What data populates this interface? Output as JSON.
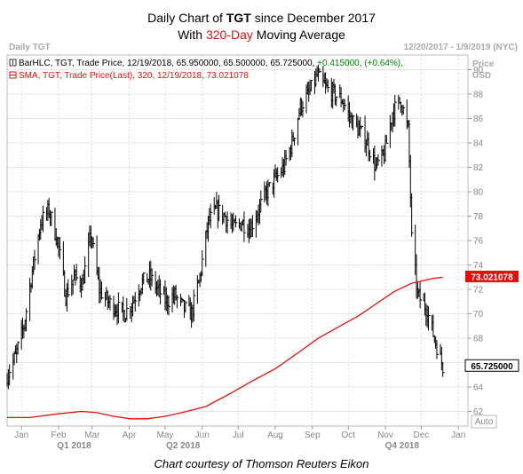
{
  "title": {
    "line1_pre": "Daily Chart of ",
    "line1_bold": "TGT",
    "line1_post": " since December 2017",
    "line2_pre": "With ",
    "line2_red": "320-Day",
    "line2_post": " Moving Average"
  },
  "header": {
    "left": "Daily TGT",
    "right": "12/20/2017 - 1/9/2019 (NYC)",
    "price_label": "Price",
    "currency": "USD",
    "auto_label": "Auto"
  },
  "legend": {
    "bar_text": "BarHLC, TGT, Trade Price,  12/19/2018,  65.950000,  65.500000,  65.725000,",
    "bar_change": " +0.415000,  (+0.64%),",
    "sma_text": "SMA, TGT, Trade Price(Last),  320,  12/19/2018,  73.021078"
  },
  "caption": "Chart courtesy of Thomson Reuters Eikon",
  "colors": {
    "price": "#000000",
    "sma": "#e01010",
    "change": "#008000",
    "grid": "#cccccc"
  },
  "chart_data": {
    "type": "line",
    "ylim": [
      60.8,
      91.2
    ],
    "yticks": [
      62,
      64,
      66,
      68,
      70,
      72,
      74,
      76,
      78,
      80,
      82,
      84,
      86,
      88,
      90
    ],
    "x_range": [
      "2017-12-20",
      "2019-01-09"
    ],
    "month_ticks": [
      {
        "label": "Jan",
        "date": "2018-01-01"
      },
      {
        "label": "Feb",
        "date": "2018-02-01"
      },
      {
        "label": "Mar",
        "date": "2018-03-01"
      },
      {
        "label": "Apr",
        "date": "2018-04-01"
      },
      {
        "label": "May",
        "date": "2018-05-01"
      },
      {
        "label": "Jun",
        "date": "2018-06-01"
      },
      {
        "label": "Jul",
        "date": "2018-07-01"
      },
      {
        "label": "Aug",
        "date": "2018-08-01"
      },
      {
        "label": "Sep",
        "date": "2018-09-01"
      },
      {
        "label": "Oct",
        "date": "2018-10-01"
      },
      {
        "label": "Nov",
        "date": "2018-11-01"
      },
      {
        "label": "Dec",
        "date": "2018-12-01"
      },
      {
        "label": "Jan",
        "date": "2019-01-01"
      }
    ],
    "quarter_labels": [
      {
        "label": "Q1 2018",
        "date": "2018-02-14"
      },
      {
        "label": "Q2 2018",
        "date": "2018-05-16"
      },
      {
        "label": "Q4 2018",
        "date": "2018-11-15"
      }
    ],
    "price_series": {
      "name": "BarHLC, TGT, Trade Price",
      "x": [
        "2017-12-20",
        "2017-12-27",
        "2018-01-03",
        "2018-01-10",
        "2018-01-17",
        "2018-01-24",
        "2018-01-31",
        "2018-02-07",
        "2018-02-14",
        "2018-02-21",
        "2018-02-28",
        "2018-03-07",
        "2018-03-14",
        "2018-03-21",
        "2018-03-28",
        "2018-04-04",
        "2018-04-11",
        "2018-04-18",
        "2018-04-25",
        "2018-05-02",
        "2018-05-09",
        "2018-05-16",
        "2018-05-23",
        "2018-05-30",
        "2018-06-06",
        "2018-06-13",
        "2018-06-20",
        "2018-06-27",
        "2018-07-04",
        "2018-07-11",
        "2018-07-18",
        "2018-07-25",
        "2018-08-01",
        "2018-08-08",
        "2018-08-15",
        "2018-08-22",
        "2018-08-29",
        "2018-09-05",
        "2018-09-12",
        "2018-09-19",
        "2018-09-26",
        "2018-10-03",
        "2018-10-10",
        "2018-10-17",
        "2018-10-24",
        "2018-10-31",
        "2018-11-07",
        "2018-11-14",
        "2018-11-20",
        "2018-11-21",
        "2018-11-28",
        "2018-12-05",
        "2018-12-12",
        "2018-12-19"
      ],
      "close": [
        65.0,
        66.5,
        69.0,
        73.5,
        77.5,
        78.5,
        76.0,
        71.5,
        73.0,
        72.5,
        76.5,
        72.0,
        71.0,
        70.5,
        70.0,
        71.0,
        72.5,
        73.0,
        72.0,
        71.0,
        71.5,
        70.5,
        70.0,
        73.0,
        77.5,
        78.5,
        78.0,
        77.0,
        77.5,
        77.0,
        78.5,
        80.0,
        81.0,
        82.0,
        84.0,
        87.0,
        88.0,
        89.5,
        88.5,
        88.0,
        87.5,
        86.0,
        85.0,
        84.0,
        82.0,
        83.0,
        86.5,
        87.5,
        85.0,
        78.0,
        71.5,
        70.5,
        68.0,
        65.7
      ]
    },
    "sma_series": {
      "name": "SMA, TGT, Trade Price(Last), 320",
      "x": [
        "2017-12-20",
        "2018-01-08",
        "2018-01-31",
        "2018-02-20",
        "2018-03-05",
        "2018-03-19",
        "2018-04-02",
        "2018-04-16",
        "2018-05-01",
        "2018-05-15",
        "2018-06-04",
        "2018-06-25",
        "2018-07-13",
        "2018-08-01",
        "2018-08-20",
        "2018-09-06",
        "2018-09-24",
        "2018-10-09",
        "2018-10-24",
        "2018-11-08",
        "2018-11-23",
        "2018-12-11",
        "2018-12-19"
      ],
      "y": [
        61.5,
        61.5,
        61.8,
        62.0,
        61.9,
        61.6,
        61.4,
        61.4,
        61.6,
        61.9,
        62.4,
        63.5,
        64.5,
        65.5,
        66.8,
        68.0,
        69.0,
        69.8,
        70.8,
        71.8,
        72.5,
        72.9,
        73.0
      ]
    },
    "last_price_tag": "65.725000",
    "sma_tag": "73.021078"
  }
}
